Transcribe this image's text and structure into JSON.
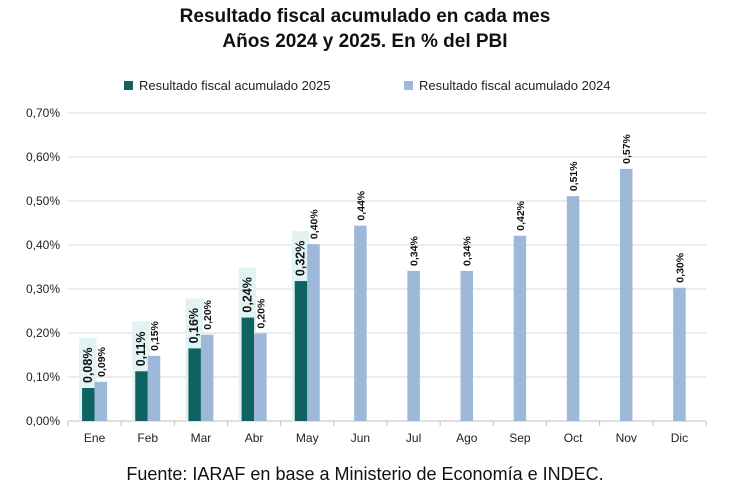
{
  "chart_data": {
    "type": "bar",
    "title": "Resultado fiscal acumulado en cada mes",
    "subtitle": "Años 2024 y 2025. En % del PBI",
    "categories": [
      "Ene",
      "Feb",
      "Mar",
      "Abr",
      "May",
      "Jun",
      "Jul",
      "Ago",
      "Sep",
      "Oct",
      "Nov",
      "Dic"
    ],
    "series": [
      {
        "name": "Resultado fiscal acumulado 2025",
        "color": "#0e6262",
        "values": [
          0.075,
          0.113,
          0.165,
          0.235,
          0.318,
          null,
          null,
          null,
          null,
          null,
          null,
          null
        ],
        "labels": [
          "0,08%",
          "0,11%",
          "0,16%",
          "0,24%",
          "0,32%",
          null,
          null,
          null,
          null,
          null,
          null,
          null
        ]
      },
      {
        "name": "Resultado fiscal acumulado 2024",
        "color": "#9db8d8",
        "values": [
          0.089,
          0.148,
          0.196,
          0.199,
          0.402,
          0.444,
          0.341,
          0.341,
          0.421,
          0.511,
          0.573,
          0.303
        ],
        "labels": [
          "0,09%",
          "0,15%",
          "0,20%",
          "0,20%",
          "0,40%",
          "0,44%",
          "0,34%",
          "0,34%",
          "0,42%",
          "0,51%",
          "0,57%",
          "0,30%"
        ]
      }
    ],
    "ylim": [
      0,
      0.7
    ],
    "yticks": [
      "0,00%",
      "0,10%",
      "0,20%",
      "0,30%",
      "0,40%",
      "0,50%",
      "0,60%",
      "0,70%"
    ],
    "grid": true,
    "legend_position": "top",
    "source": "Fuente: IARAF en base a Ministerio de Economía e INDEC."
  }
}
